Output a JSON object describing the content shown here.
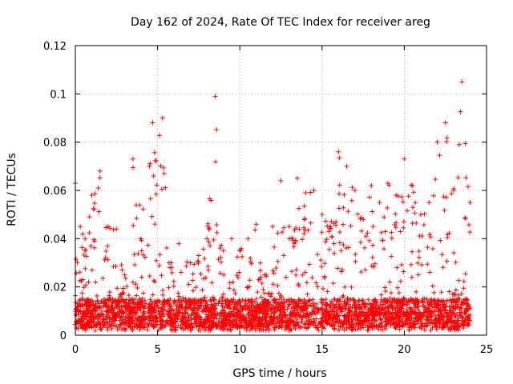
{
  "chart_data": {
    "type": "scatter",
    "title": "Day 162 of 2024, Rate Of TEC Index for receiver areg",
    "xlabel": "GPS time / hours",
    "ylabel": "ROTI / TECUs",
    "xlim": [
      0,
      25
    ],
    "ylim": [
      0,
      0.12
    ],
    "x_ticks": [
      0,
      5,
      10,
      15,
      20,
      25
    ],
    "x_tick_labels": [
      "0",
      "5",
      "10",
      "15",
      "20",
      "25"
    ],
    "y_ticks": [
      0,
      0.02,
      0.04,
      0.06,
      0.08,
      0.1,
      0.12
    ],
    "y_tick_labels": [
      "0",
      "0.02",
      "0.04",
      "0.06",
      "0.08",
      "0.1",
      "0.12"
    ],
    "grid": true,
    "marker": "+",
    "color": "#ff0000",
    "series": [
      {
        "name": "ROTI",
        "data_extent": {
          "x_min": 0,
          "x_max": 24,
          "y_min": 0.002
        },
        "envelope": [
          {
            "x": 0.0,
            "y": 0.063
          },
          {
            "x": 0.3,
            "y": 0.045
          },
          {
            "x": 0.6,
            "y": 0.04
          },
          {
            "x": 1.0,
            "y": 0.058
          },
          {
            "x": 1.5,
            "y": 0.068
          },
          {
            "x": 2.0,
            "y": 0.045
          },
          {
            "x": 2.5,
            "y": 0.044
          },
          {
            "x": 3.0,
            "y": 0.025
          },
          {
            "x": 3.5,
            "y": 0.022
          },
          {
            "x": 3.5,
            "y": 0.073
          },
          {
            "x": 4.5,
            "y": 0.07
          },
          {
            "x": 4.7,
            "y": 0.088
          },
          {
            "x": 5.3,
            "y": 0.09
          },
          {
            "x": 5.7,
            "y": 0.03
          },
          {
            "x": 6.3,
            "y": 0.038
          },
          {
            "x": 7.0,
            "y": 0.03
          },
          {
            "x": 7.5,
            "y": 0.033
          },
          {
            "x": 8.0,
            "y": 0.04
          },
          {
            "x": 8.5,
            "y": 0.099
          },
          {
            "x": 9.0,
            "y": 0.035
          },
          {
            "x": 9.5,
            "y": 0.04
          },
          {
            "x": 10.0,
            "y": 0.035
          },
          {
            "x": 10.5,
            "y": 0.04
          },
          {
            "x": 11.0,
            "y": 0.046
          },
          {
            "x": 11.5,
            "y": 0.025
          },
          {
            "x": 12.0,
            "y": 0.045
          },
          {
            "x": 12.5,
            "y": 0.064
          },
          {
            "x": 13.0,
            "y": 0.045
          },
          {
            "x": 13.5,
            "y": 0.065
          },
          {
            "x": 14.0,
            "y": 0.059
          },
          {
            "x": 14.5,
            "y": 0.06
          },
          {
            "x": 15.0,
            "y": 0.05
          },
          {
            "x": 15.5,
            "y": 0.045
          },
          {
            "x": 16.0,
            "y": 0.076
          },
          {
            "x": 16.5,
            "y": 0.07
          },
          {
            "x": 17.0,
            "y": 0.06
          },
          {
            "x": 17.5,
            "y": 0.048
          },
          {
            "x": 18.0,
            "y": 0.062
          },
          {
            "x": 18.5,
            "y": 0.055
          },
          {
            "x": 19.0,
            "y": 0.063
          },
          {
            "x": 19.5,
            "y": 0.058
          },
          {
            "x": 20.0,
            "y": 0.073
          },
          {
            "x": 20.5,
            "y": 0.062
          },
          {
            "x": 21.0,
            "y": 0.05
          },
          {
            "x": 21.5,
            "y": 0.055
          },
          {
            "x": 22.0,
            "y": 0.08
          },
          {
            "x": 22.5,
            "y": 0.088
          },
          {
            "x": 23.0,
            "y": 0.06
          },
          {
            "x": 23.5,
            "y": 0.105
          },
          {
            "x": 24.0,
            "y": 0.055
          }
        ],
        "baseline_band": [
          0.003,
          0.015
        ]
      }
    ]
  }
}
